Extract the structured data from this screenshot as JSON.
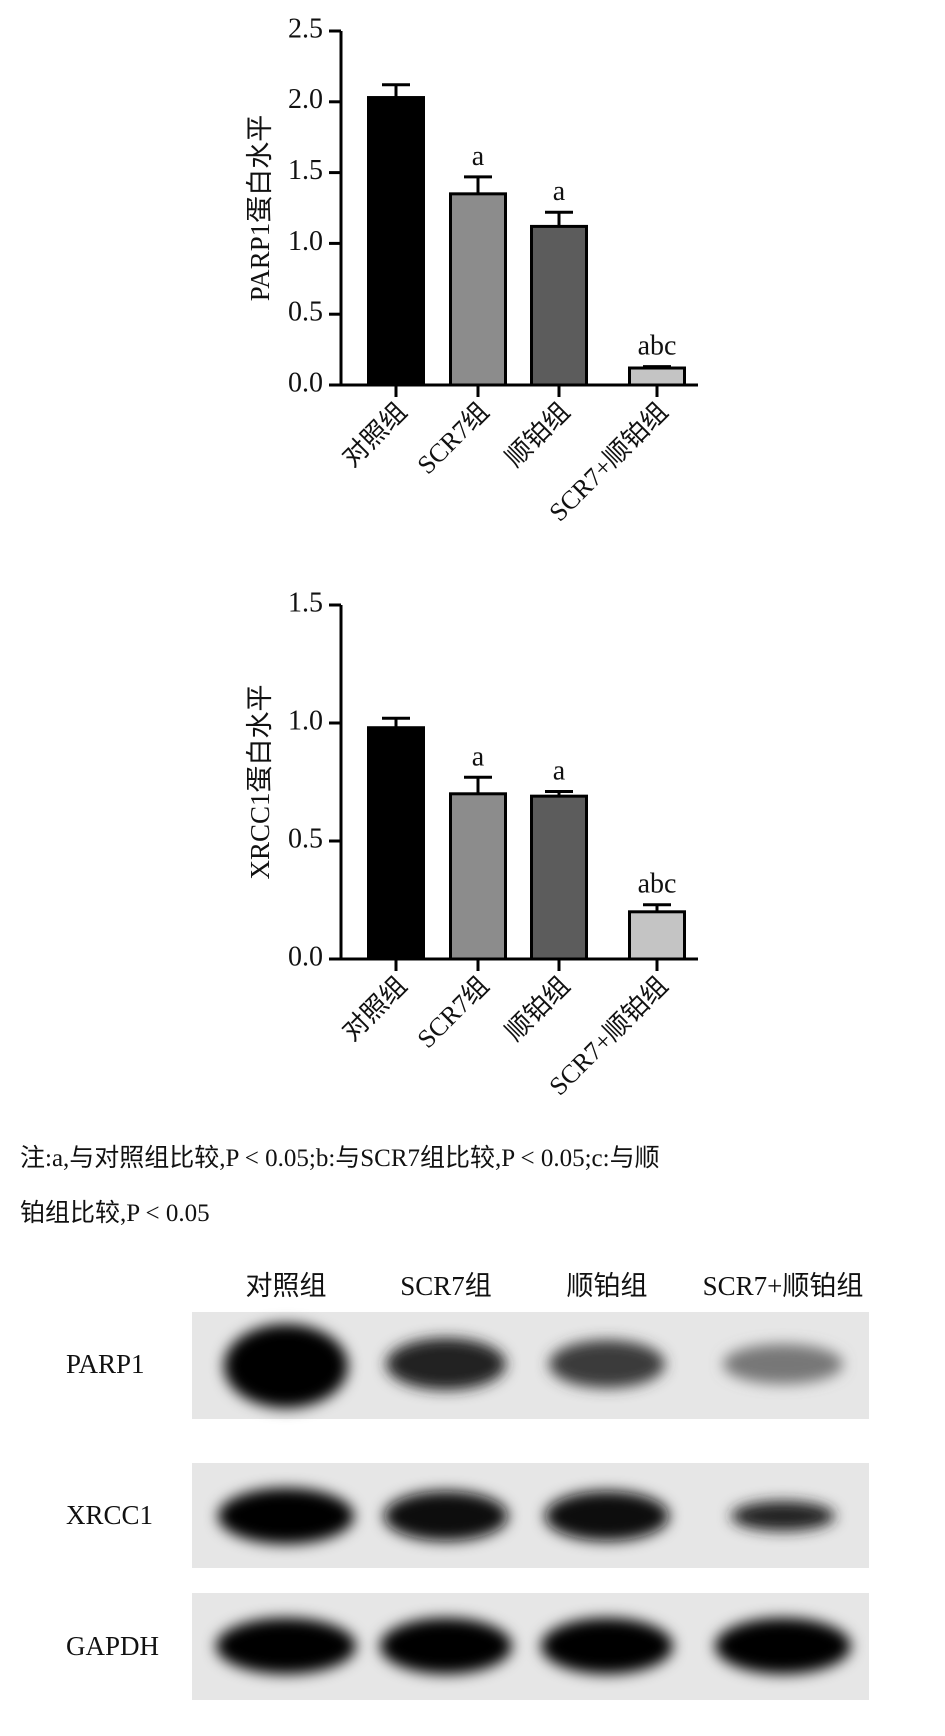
{
  "chart_data": [
    {
      "type": "bar",
      "ylabel": "PARP1蛋白水平",
      "categories": [
        "对照组",
        "SCR7组",
        "顺铂组",
        "SCR7+顺铂组"
      ],
      "values": [
        2.03,
        1.35,
        1.12,
        0.12
      ],
      "errors": [
        0.09,
        0.12,
        0.1,
        0.01
      ],
      "sig_labels": [
        null,
        "a",
        "a",
        "abc"
      ],
      "colors": [
        "#000000",
        "#8c8c8c",
        "#5c5c5c",
        "#c4c4c4"
      ],
      "ylim": [
        0,
        2.5
      ],
      "yticks": [
        {
          "value": 0,
          "label": "0.0"
        },
        0.5,
        {
          "value": 1,
          "label": "1.0"
        },
        1.5,
        {
          "value": 2,
          "label": "2.0"
        },
        2.5
      ]
    },
    {
      "type": "bar",
      "ylabel": "XRCC1蛋白水平",
      "categories": [
        "对照组",
        "SCR7组",
        "顺铂组",
        "SCR7+顺铂组"
      ],
      "values": [
        0.98,
        0.7,
        0.69,
        0.2
      ],
      "errors": [
        0.04,
        0.07,
        0.02,
        0.03
      ],
      "sig_labels": [
        null,
        "a",
        "a",
        "abc"
      ],
      "colors": [
        "#000000",
        "#8c8c8c",
        "#5c5c5c",
        "#c4c4c4"
      ],
      "ylim": [
        0,
        1.5
      ],
      "yticks": [
        {
          "value": 0,
          "label": "0.0"
        },
        0.5,
        {
          "value": 1,
          "label": "1.0"
        },
        1.5
      ]
    }
  ],
  "note": {
    "lines": [
      "注:a,与对照组比较,P < 0.05;b:与SCR7组比较,P < 0.05;c:与顺",
      "铂组比较,P < 0.05"
    ]
  },
  "blot": {
    "lanes": [
      "对照组",
      "SCR7组",
      "顺铂组",
      "SCR7+顺铂组"
    ],
    "rows": [
      "PARP1",
      "XRCC1",
      "GAPDH"
    ]
  }
}
